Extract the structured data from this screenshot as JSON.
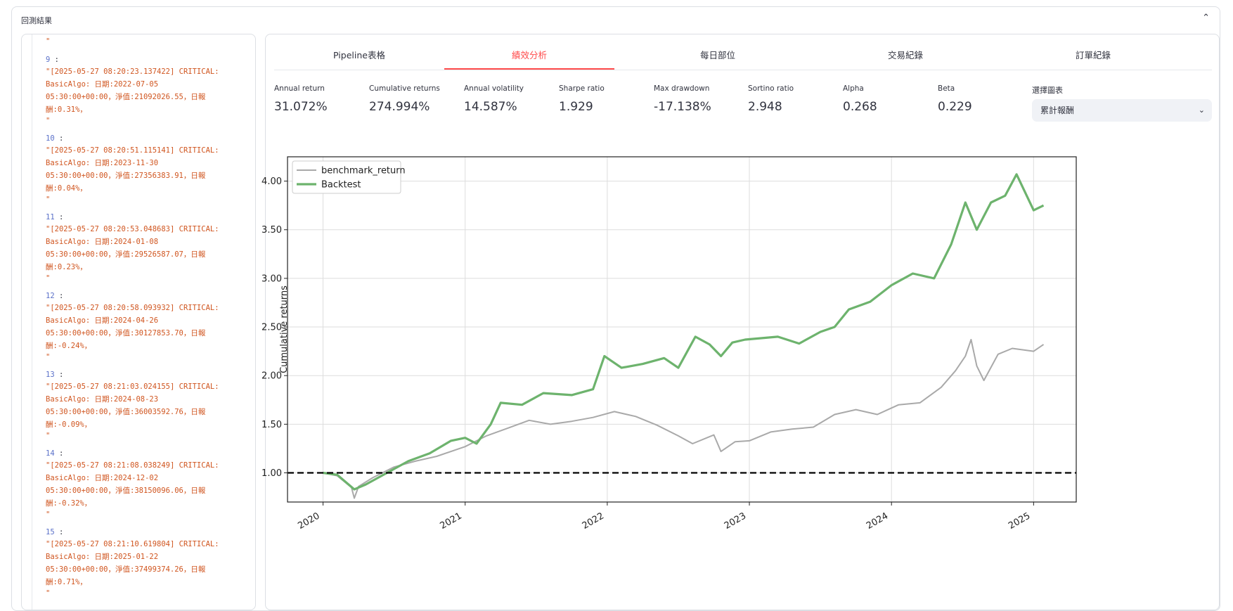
{
  "expander": {
    "title": "回測結果",
    "chevron": "chevron-up-icon"
  },
  "log": {
    "top_quote": "\"",
    "entries": [
      {
        "index": "9",
        "lines": [
          "\"[2025-05-27 08:20:23.137422] CRITICAL:",
          "BasicAlgo: 日期:2022-07-05",
          "05:30:00+00:00，淨值:21092026.55，日報",
          "酬:0.31%，"
        ],
        "close": "\""
      },
      {
        "index": "10",
        "lines": [
          "\"[2025-05-27 08:20:51.115141] CRITICAL:",
          "BasicAlgo: 日期:2023-11-30",
          "05:30:00+00:00，淨值:27356383.91，日報",
          "酬:0.04%，"
        ],
        "close": "\""
      },
      {
        "index": "11",
        "lines": [
          "\"[2025-05-27 08:20:53.048683] CRITICAL:",
          "BasicAlgo: 日期:2024-01-08",
          "05:30:00+00:00，淨值:29526587.07，日報",
          "酬:0.23%，"
        ],
        "close": "\""
      },
      {
        "index": "12",
        "lines": [
          "\"[2025-05-27 08:20:58.093932] CRITICAL:",
          "BasicAlgo: 日期:2024-04-26",
          "05:30:00+00:00，淨值:30127853.70，日報",
          "酬:-0.24%，"
        ],
        "close": "\""
      },
      {
        "index": "13",
        "lines": [
          "\"[2025-05-27 08:21:03.024155] CRITICAL:",
          "BasicAlgo: 日期:2024-08-23",
          "05:30:00+00:00，淨值:36003592.76，日報",
          "酬:-0.09%，"
        ],
        "close": "\""
      },
      {
        "index": "14",
        "lines": [
          "\"[2025-05-27 08:21:08.038249] CRITICAL:",
          "BasicAlgo: 日期:2024-12-02",
          "05:30:00+00:00，淨值:38150096.06，日報",
          "酬:-0.32%，"
        ],
        "close": "\""
      },
      {
        "index": "15",
        "lines": [
          "\"[2025-05-27 08:21:10.619804] CRITICAL:",
          "BasicAlgo: 日期:2025-01-22",
          "05:30:00+00:00，淨值:37499374.26，日報",
          "酬:0.71%，"
        ],
        "close": "\""
      }
    ]
  },
  "tabs": [
    {
      "label": "Pipeline表格",
      "active": false
    },
    {
      "label": "績效分析",
      "active": true
    },
    {
      "label": "每日部位",
      "active": false
    },
    {
      "label": "交易紀錄",
      "active": false
    },
    {
      "label": "訂單紀錄",
      "active": false
    }
  ],
  "metrics": [
    {
      "label": "Annual return",
      "value": "31.072%"
    },
    {
      "label": "Cumulative returns",
      "value": "274.994%"
    },
    {
      "label": "Annual volatility",
      "value": "14.587%"
    },
    {
      "label": "Sharpe ratio",
      "value": "1.929"
    },
    {
      "label": "Max drawdown",
      "value": "-17.138%"
    },
    {
      "label": "Sortino ratio",
      "value": "2.948"
    },
    {
      "label": "Alpha",
      "value": "0.268"
    },
    {
      "label": "Beta",
      "value": "0.229"
    }
  ],
  "chart_selector": {
    "label": "選擇圖表",
    "value": "累計報酬",
    "icon": "chevron-down-icon"
  },
  "colors": {
    "accent": "#ff4b4b",
    "backtest": "#6db36d",
    "benchmark": "#a9a9a9",
    "log_text": "#d0551f",
    "log_index": "#5b71c9"
  },
  "chart_data": {
    "type": "line",
    "ylabel": "Cumulative returns",
    "xlabel": "",
    "ylim": [
      0.7,
      4.25
    ],
    "xlim": [
      2019.75,
      2025.3
    ],
    "yticks": [
      1.0,
      1.5,
      2.0,
      2.5,
      3.0,
      3.5,
      4.0
    ],
    "ytick_labels": [
      "1.00",
      "1.50",
      "2.00",
      "2.50",
      "3.00",
      "3.50",
      "4.00"
    ],
    "xticks": [
      2020,
      2021,
      2022,
      2023,
      2024,
      2025
    ],
    "xtick_labels": [
      "2020",
      "2021",
      "2022",
      "2023",
      "2024",
      "2025"
    ],
    "grid": true,
    "legend_position": "top-left",
    "reference_line": {
      "y": 1.0,
      "style": "dashed"
    },
    "series": [
      {
        "name": "benchmark_return",
        "x": [
          2020.0,
          2020.1,
          2020.2,
          2020.22,
          2020.25,
          2020.35,
          2020.5,
          2020.65,
          2020.8,
          2021.0,
          2021.15,
          2021.3,
          2021.45,
          2021.6,
          2021.75,
          2021.9,
          2022.05,
          2022.2,
          2022.35,
          2022.5,
          2022.6,
          2022.75,
          2022.8,
          2022.9,
          2023.0,
          2023.15,
          2023.3,
          2023.45,
          2023.6,
          2023.75,
          2023.9,
          2024.05,
          2024.2,
          2024.35,
          2024.45,
          2024.52,
          2024.56,
          2024.6,
          2024.65,
          2024.75,
          2024.85,
          2025.0,
          2025.07
        ],
        "values": [
          1.0,
          0.97,
          0.85,
          0.74,
          0.86,
          0.95,
          1.06,
          1.12,
          1.17,
          1.27,
          1.38,
          1.46,
          1.54,
          1.5,
          1.53,
          1.57,
          1.63,
          1.58,
          1.49,
          1.38,
          1.3,
          1.39,
          1.22,
          1.32,
          1.33,
          1.42,
          1.45,
          1.47,
          1.6,
          1.65,
          1.6,
          1.7,
          1.72,
          1.88,
          2.05,
          2.2,
          2.37,
          2.1,
          1.95,
          2.22,
          2.28,
          2.25,
          2.32
        ]
      },
      {
        "name": "Backtest",
        "x": [
          2020.0,
          2020.1,
          2020.22,
          2020.3,
          2020.45,
          2020.6,
          2020.75,
          2020.9,
          2021.0,
          2021.08,
          2021.18,
          2021.25,
          2021.4,
          2021.55,
          2021.75,
          2021.9,
          2021.98,
          2022.1,
          2022.25,
          2022.4,
          2022.5,
          2022.62,
          2022.72,
          2022.8,
          2022.88,
          2022.97,
          2023.2,
          2023.35,
          2023.5,
          2023.6,
          2023.7,
          2023.85,
          2024.0,
          2024.15,
          2024.3,
          2024.42,
          2024.52,
          2024.6,
          2024.7,
          2024.8,
          2024.88,
          2025.0,
          2025.07
        ],
        "values": [
          1.0,
          0.98,
          0.83,
          0.88,
          1.0,
          1.12,
          1.2,
          1.33,
          1.36,
          1.3,
          1.5,
          1.72,
          1.7,
          1.82,
          1.8,
          1.86,
          2.2,
          2.08,
          2.12,
          2.18,
          2.08,
          2.4,
          2.32,
          2.2,
          2.34,
          2.37,
          2.4,
          2.33,
          2.45,
          2.5,
          2.68,
          2.76,
          2.93,
          3.05,
          3.0,
          3.35,
          3.78,
          3.5,
          3.78,
          3.85,
          4.07,
          3.7,
          3.75
        ]
      }
    ]
  }
}
